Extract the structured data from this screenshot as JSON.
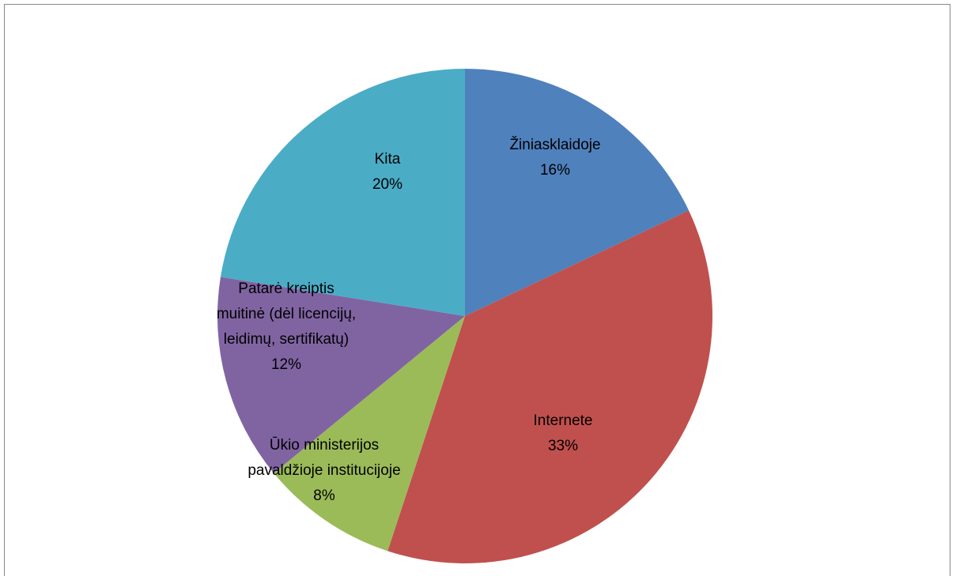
{
  "chart_data": {
    "type": "pie",
    "categories": [
      "Žiniasklaidoje",
      "Internete",
      "Ūkio ministerijos pavaldžioje institucijoje",
      "Patarė kreiptis muitinė (dėl licencijų, leidimų, sertifikatų)",
      "Kita"
    ],
    "values": [
      16,
      33,
      8,
      12,
      20
    ],
    "value_labels": [
      "16%",
      "33%",
      "8%",
      "12%",
      "20%"
    ],
    "colors": [
      "#4f81bd",
      "#c0504d",
      "#9bbb59",
      "#8064a2",
      "#4bacc6"
    ]
  }
}
